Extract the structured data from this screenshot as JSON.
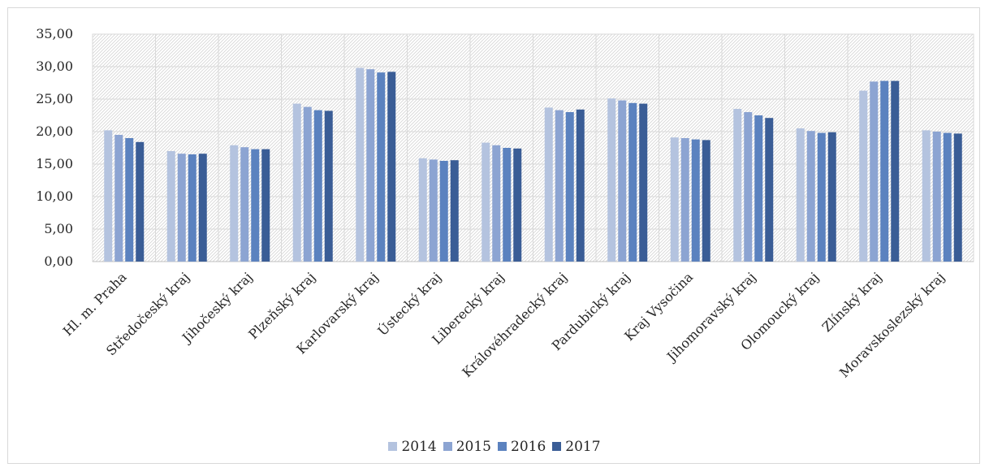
{
  "chart_data": {
    "type": "bar",
    "categories": [
      "Hl. m. Praha",
      "Středočeský kraj",
      "Jihočeský kraj",
      "Plzeňský kraj",
      "Karlovarský kraj",
      "Ústecký kraj",
      "Liberecký kraj",
      "Královéhradecký kraj",
      "Pardubický kraj",
      "Kraj Vysočina",
      "Jihomoravský kraj",
      "Olomoucký kraj",
      "Zlínský kraj",
      "Moravskoslezský kraj"
    ],
    "series": [
      {
        "name": "2014",
        "color": "#b4c3df",
        "values": [
          20.2,
          17.0,
          17.9,
          24.3,
          29.8,
          15.9,
          18.3,
          23.7,
          25.1,
          19.1,
          23.5,
          20.5,
          26.3,
          20.2
        ]
      },
      {
        "name": "2015",
        "color": "#8ca4d2",
        "values": [
          19.5,
          16.6,
          17.6,
          23.8,
          29.6,
          15.7,
          17.9,
          23.3,
          24.8,
          19.0,
          23.0,
          20.1,
          27.7,
          20.0
        ]
      },
      {
        "name": "2016",
        "color": "#5b82bf",
        "values": [
          19.0,
          16.5,
          17.3,
          23.3,
          29.1,
          15.5,
          17.5,
          23.0,
          24.4,
          18.8,
          22.5,
          19.8,
          27.8,
          19.8
        ]
      },
      {
        "name": "2017",
        "color": "#3a5d96",
        "values": [
          18.4,
          16.6,
          17.3,
          23.2,
          29.2,
          15.6,
          17.4,
          23.4,
          24.3,
          18.7,
          22.1,
          19.9,
          27.8,
          19.7
        ]
      }
    ],
    "yticks": [
      "0,00",
      "5,00",
      "10,00",
      "15,00",
      "20,00",
      "25,00",
      "30,00",
      "35,00"
    ],
    "ylim": [
      0,
      35
    ],
    "grid": true,
    "legend_position": "bottom"
  }
}
